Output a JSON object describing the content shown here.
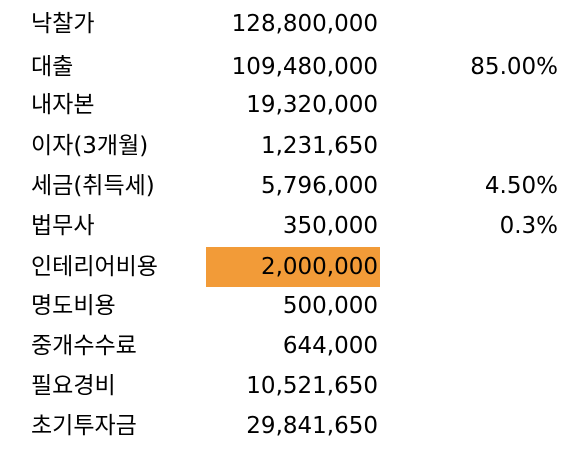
{
  "colors": {
    "highlight_fill": "#f29b38",
    "background": "#ffffff",
    "text": "#000000"
  },
  "rows": [
    {
      "label": "낙찰가",
      "value": "128,800,000",
      "rate": ""
    },
    {
      "label": "대출",
      "value": "109,480,000",
      "rate": "85.00%"
    },
    {
      "label": "내자본",
      "value": "19,320,000",
      "rate": ""
    },
    {
      "label": "이자(3개월)",
      "value": "1,231,650",
      "rate": ""
    },
    {
      "label": "세금(취득세)",
      "value": "5,796,000",
      "rate": "4.50%"
    },
    {
      "label": "법무사",
      "value": "350,000",
      "rate": "0.3%"
    },
    {
      "label": "인테리어비용",
      "value": "2,000,000",
      "rate": "",
      "highlighted": true
    },
    {
      "label": "명도비용",
      "value": "500,000",
      "rate": ""
    },
    {
      "label": "중개수수료",
      "value": "644,000",
      "rate": ""
    },
    {
      "label": "필요경비",
      "value": "10,521,650",
      "rate": ""
    },
    {
      "label": "초기투자금",
      "value": "29,841,650",
      "rate": ""
    }
  ]
}
